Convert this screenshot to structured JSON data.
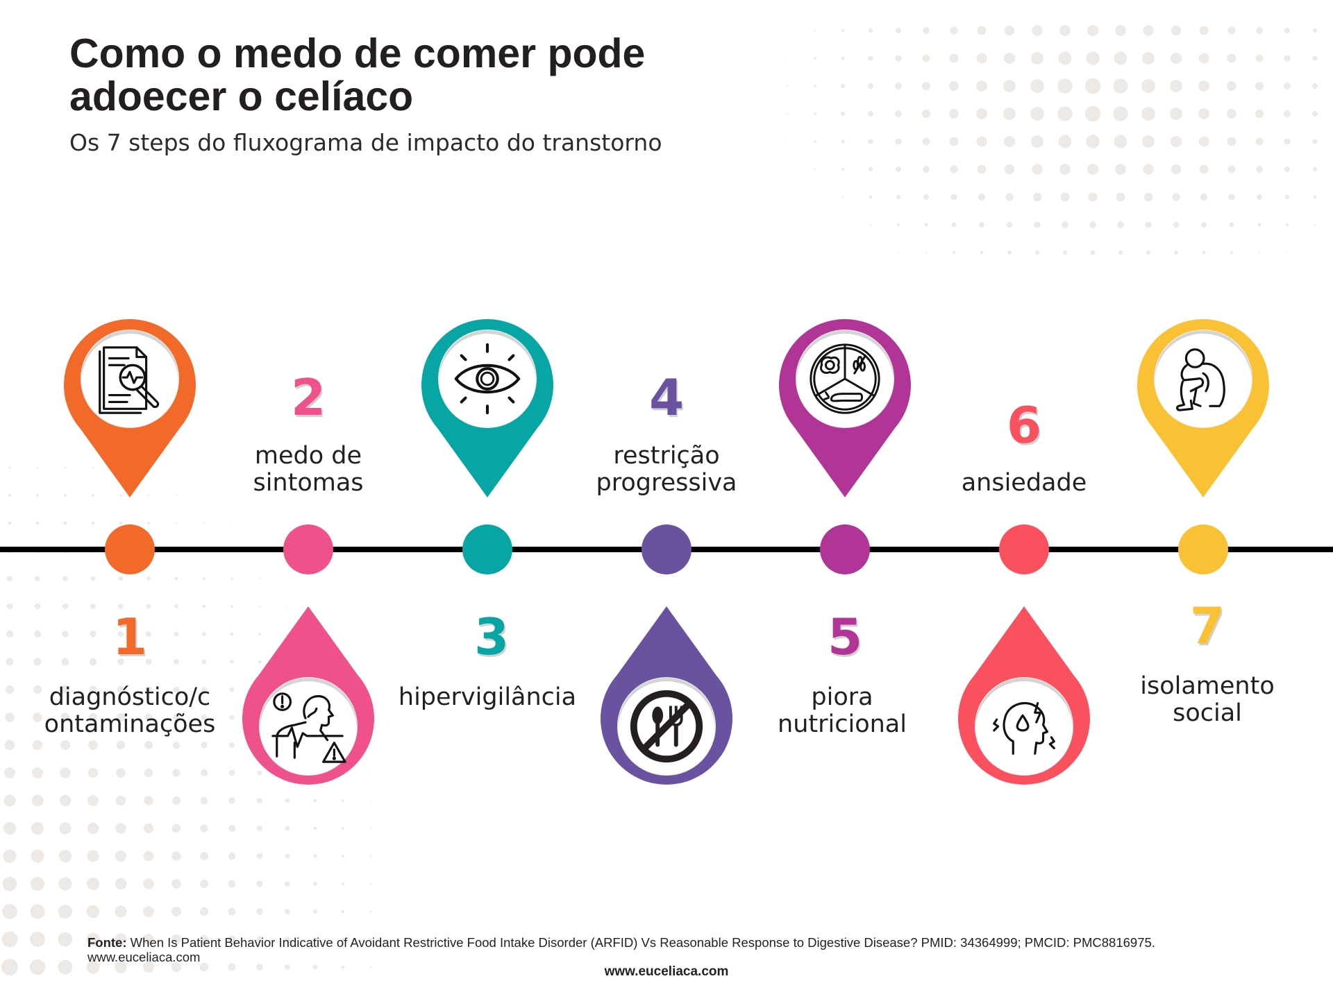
{
  "title": {
    "line1": "Como o medo de comer pode",
    "line2": "adoecer o celíaco"
  },
  "subtitle": "Os 7 steps do fluxograma de impacto do transtorno",
  "colors": {
    "orange": "#f26a2a",
    "pink": "#ef528a",
    "teal": "#07a6a5",
    "purple": "#6a52a0",
    "magenta": "#b13497",
    "coral": "#fa515f",
    "yellow": "#f9c133",
    "line": "#000000",
    "dots": "#ece9e6"
  },
  "steps": [
    {
      "number": "1",
      "label_line1": "diagnóstico/c",
      "label_line2": "ontaminações",
      "icon": "document-magnifier-icon",
      "color": "orange"
    },
    {
      "number": "2",
      "label_line1": "medo de",
      "label_line2": "sintomas",
      "icon": "person-warning-icon",
      "color": "pink"
    },
    {
      "number": "3",
      "label_line1": "hipervigilância",
      "label_line2": "",
      "icon": "eye-icon",
      "color": "teal"
    },
    {
      "number": "4",
      "label_line1": "restrição",
      "label_line2": "progressiva",
      "icon": "no-eating-icon",
      "color": "purple"
    },
    {
      "number": "5",
      "label_line1": "piora",
      "label_line2": "nutricional",
      "icon": "food-plate-icon",
      "color": "magenta"
    },
    {
      "number": "6",
      "label_line1": "",
      "label_line2": "ansiedade",
      "icon": "anxious-head-icon",
      "color": "coral"
    },
    {
      "number": "7",
      "label_line1": "isolamento",
      "label_line2": "social",
      "icon": "isolated-person-icon",
      "color": "yellow"
    }
  ],
  "source": {
    "label": "Fonte:",
    "text": " When Is Patient Behavior Indicative of Avoidant Restrictive Food Intake Disorder (ARFID) Vs Reasonable Response to Digestive Disease? PMID: 34364999; PMCID: PMC8816975. www.euceliaca.com"
  },
  "footer_site": "www.euceliaca.com"
}
